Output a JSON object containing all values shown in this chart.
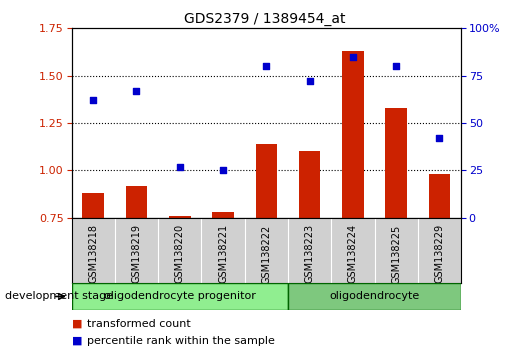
{
  "title": "GDS2379 / 1389454_at",
  "samples": [
    "GSM138218",
    "GSM138219",
    "GSM138220",
    "GSM138221",
    "GSM138222",
    "GSM138223",
    "GSM138224",
    "GSM138225",
    "GSM138229"
  ],
  "transformed_count": [
    0.88,
    0.92,
    0.76,
    0.78,
    1.14,
    1.1,
    1.63,
    1.33,
    0.98
  ],
  "percentile_rank": [
    62,
    67,
    27,
    25,
    80,
    72,
    85,
    80,
    42
  ],
  "bar_color": "#cc2200",
  "scatter_color": "#0000cc",
  "left_ylim": [
    0.75,
    1.75
  ],
  "right_ylim": [
    0,
    100
  ],
  "left_yticks": [
    0.75,
    1.0,
    1.25,
    1.5,
    1.75
  ],
  "right_yticks": [
    0,
    25,
    50,
    75,
    100
  ],
  "right_yticklabels": [
    "0",
    "25",
    "50",
    "75",
    "100%"
  ],
  "hgrid_vals": [
    1.0,
    1.25,
    1.5
  ],
  "groups": [
    {
      "label": "oligodendrocyte progenitor",
      "start": 0,
      "end": 4,
      "color": "#90ee90"
    },
    {
      "label": "oligodendrocyte",
      "start": 5,
      "end": 8,
      "color": "#7ec87e"
    }
  ],
  "dev_stage_label": "development stage",
  "legend_bar_label": "transformed count",
  "legend_scatter_label": "percentile rank within the sample",
  "sample_bg_color": "#d0d0d0",
  "plot_bg": "white",
  "group_border_color": "#006400"
}
